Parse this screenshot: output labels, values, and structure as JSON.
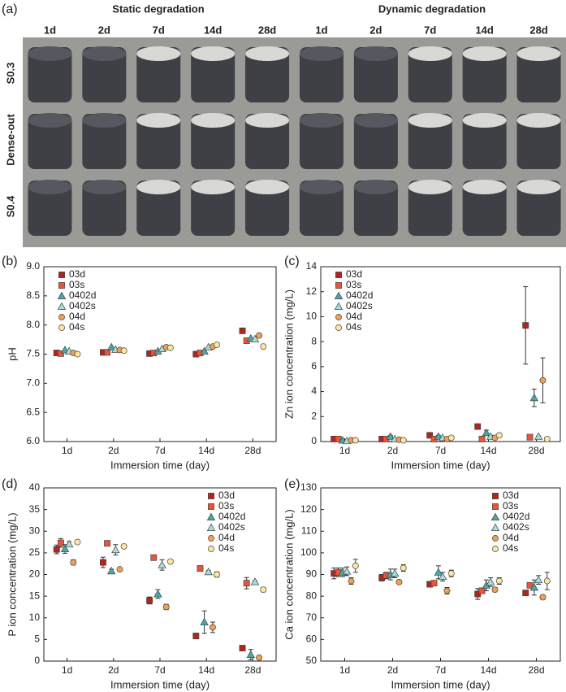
{
  "photo_panel": {
    "label": "(a)",
    "groups": [
      "Static degradation",
      "Dynamic degradation"
    ],
    "days": [
      "1d",
      "2d",
      "7d",
      "14d",
      "28d",
      "1d",
      "2d",
      "7d",
      "14d",
      "28d"
    ],
    "rows": [
      "S0.3",
      "Dense-out",
      "S0.4"
    ]
  },
  "chart_data": [
    {
      "type": "scatter",
      "panel_label": "(b)",
      "ylabel": "pH",
      "xlabel": "Immersion time (day)",
      "categories": [
        "1d",
        "2d",
        "7d",
        "14d",
        "28d"
      ],
      "ylim": [
        6.0,
        9.0
      ],
      "yticks": [
        {
          "value": 6,
          "label": "6.0"
        },
        {
          "value": 6.5,
          "label": "6.5"
        },
        {
          "value": 7,
          "label": "7.0"
        },
        {
          "value": 7.5,
          "label": "7.5"
        },
        {
          "value": 8,
          "label": "8.0"
        },
        {
          "value": 8.5,
          "label": "8.5"
        },
        {
          "value": 9,
          "label": "9.0"
        }
      ],
      "legend": "top-left",
      "series": [
        {
          "name": "03d",
          "color": "#b3241c",
          "marker": "square",
          "values": [
            7.52,
            7.53,
            7.51,
            7.5,
            7.9
          ]
        },
        {
          "name": "03s",
          "color": "#e8553a",
          "marker": "square",
          "values": [
            7.51,
            7.53,
            7.52,
            7.52,
            7.73
          ]
        },
        {
          "name": "0402d",
          "color": "#4aa8a8",
          "marker": "triangle",
          "values": [
            7.57,
            7.62,
            7.55,
            7.55,
            7.77
          ]
        },
        {
          "name": "0402s",
          "color": "#a8dcd8",
          "marker": "triangle",
          "values": [
            7.55,
            7.58,
            7.59,
            7.62,
            7.76
          ]
        },
        {
          "name": "04d",
          "color": "#f0a050",
          "marker": "circle",
          "values": [
            7.52,
            7.57,
            7.62,
            7.63,
            7.82
          ]
        },
        {
          "name": "04s",
          "color": "#fbe5a0",
          "marker": "circle",
          "values": [
            7.5,
            7.56,
            7.61,
            7.66,
            7.63
          ]
        }
      ]
    },
    {
      "type": "scatter",
      "panel_label": "(c)",
      "ylabel": "Zn ion concentration (mg/L)",
      "xlabel": "Immersion time (day)",
      "categories": [
        "1d",
        "2d",
        "7d",
        "14d",
        "28d"
      ],
      "ylim": [
        0,
        14
      ],
      "yticks": [
        0,
        2,
        4,
        6,
        8,
        10,
        12,
        14
      ],
      "legend": "top-left",
      "series": [
        {
          "name": "03d",
          "color": "#b3241c",
          "marker": "square",
          "values": [
            0.2,
            0.2,
            0.5,
            1.2,
            9.3
          ],
          "errors": [
            0.05,
            0.05,
            0.1,
            0.2,
            3.1
          ]
        },
        {
          "name": "03s",
          "color": "#e8553a",
          "marker": "square",
          "values": [
            0.2,
            0.2,
            0.2,
            0.2,
            0.35
          ],
          "errors": [
            0.05,
            0.05,
            0.05,
            0.05,
            0.05
          ]
        },
        {
          "name": "0402d",
          "color": "#4aa8a8",
          "marker": "triangle",
          "values": [
            0.1,
            0.4,
            0.4,
            0.7,
            3.5
          ],
          "errors": [
            0.05,
            0.1,
            0.1,
            0.2,
            0.7
          ]
        },
        {
          "name": "0402s",
          "color": "#a8dcd8",
          "marker": "triangle",
          "values": [
            0.05,
            0.2,
            0.3,
            0.4,
            0.4
          ],
          "errors": [
            0.05,
            0.05,
            0.05,
            0.1,
            0.05
          ]
        },
        {
          "name": "04d",
          "color": "#f0a050",
          "marker": "circle",
          "values": [
            0.1,
            0.15,
            0.2,
            0.3,
            4.9
          ],
          "errors": [
            0.05,
            0.05,
            0.05,
            0.1,
            1.8
          ]
        },
        {
          "name": "04s",
          "color": "#fbe5a0",
          "marker": "circle",
          "values": [
            0.1,
            0.1,
            0.3,
            0.5,
            0.2
          ],
          "errors": [
            0.05,
            0.05,
            0.05,
            0.1,
            0.05
          ]
        }
      ]
    },
    {
      "type": "scatter",
      "panel_label": "(d)",
      "ylabel": "P ion concentration (mg/L)",
      "xlabel": "Immersion time (day)",
      "categories": [
        "1d",
        "2d",
        "7d",
        "14d",
        "28d"
      ],
      "ylim": [
        0,
        40
      ],
      "yticks": [
        0,
        5,
        10,
        15,
        20,
        25,
        30,
        35,
        40
      ],
      "legend": "top-right",
      "series": [
        {
          "name": "03d",
          "color": "#b3241c",
          "marker": "square",
          "values": [
            25.8,
            22.8,
            14.0,
            5.8,
            3.0
          ],
          "errors": [
            1.0,
            1.2,
            0.8,
            0.6,
            0.4
          ]
        },
        {
          "name": "03s",
          "color": "#e8553a",
          "marker": "square",
          "values": [
            27.3,
            27.2,
            23.9,
            21.4,
            18.0
          ],
          "errors": [
            1.0,
            0.3,
            0.3,
            0.5,
            1.3
          ]
        },
        {
          "name": "0402d",
          "color": "#4aa8a8",
          "marker": "triangle",
          "values": [
            25.9,
            20.8,
            15.5,
            9.0,
            1.5
          ],
          "errors": [
            1.0,
            0.4,
            1.0,
            2.6,
            1.2
          ]
        },
        {
          "name": "0402s",
          "color": "#a8dcd8",
          "marker": "triangle",
          "values": [
            27.0,
            25.7,
            22.2,
            20.6,
            18.3
          ],
          "errors": [
            0.6,
            1.2,
            1.2,
            0.3,
            0.3
          ]
        },
        {
          "name": "04d",
          "color": "#f0a050",
          "marker": "circle",
          "values": [
            22.8,
            21.2,
            12.5,
            7.8,
            0.8
          ],
          "errors": [
            0.6,
            0.4,
            0.6,
            1.2,
            0.3
          ]
        },
        {
          "name": "04s",
          "color": "#fbe5a0",
          "marker": "circle",
          "values": [
            27.5,
            26.5,
            23.0,
            20.0,
            16.5
          ],
          "errors": [
            0.4,
            0.3,
            0.4,
            0.6,
            0.5
          ]
        }
      ]
    },
    {
      "type": "scatter",
      "panel_label": "(e)",
      "ylabel": "Ca ion concentration (mg/L)",
      "xlabel": "Immersion time (day)",
      "categories": [
        "1d",
        "2d",
        "7d",
        "14d",
        "28d"
      ],
      "ylim": [
        50,
        130
      ],
      "yticks": [
        50,
        60,
        70,
        80,
        90,
        100,
        110,
        120,
        130
      ],
      "legend": "top-right",
      "series": [
        {
          "name": "03d",
          "color": "#b3241c",
          "marker": "square",
          "values": [
            90.5,
            88.5,
            85.5,
            81,
            81.5
          ],
          "errors": [
            2.5,
            1.5,
            1.2,
            2.5,
            1
          ]
        },
        {
          "name": "03s",
          "color": "#e8553a",
          "marker": "square",
          "values": [
            91,
            89.5,
            86,
            82.5,
            85
          ],
          "errors": [
            2,
            1.5,
            1,
            1,
            1
          ]
        },
        {
          "name": "0402d",
          "color": "#4aa8a8",
          "marker": "triangle",
          "values": [
            91,
            90,
            91,
            85,
            84
          ],
          "errors": [
            2,
            2.5,
            3,
            2.5,
            3.5
          ]
        },
        {
          "name": "0402s",
          "color": "#a8dcd8",
          "marker": "triangle",
          "values": [
            91.5,
            90.5,
            89,
            86.5,
            87.5
          ],
          "errors": [
            2,
            2,
            2,
            2,
            2
          ]
        },
        {
          "name": "04d",
          "color": "#f0a050",
          "marker": "circle",
          "values": [
            87,
            86.5,
            82.5,
            83,
            79.5
          ],
          "errors": [
            1.5,
            0.8,
            1.5,
            1,
            1
          ]
        },
        {
          "name": "04s",
          "color": "#fbe5a0",
          "marker": "circle",
          "values": [
            94,
            93,
            90.5,
            87,
            87
          ],
          "errors": [
            3,
            1.5,
            1.5,
            1.5,
            4
          ]
        }
      ]
    }
  ]
}
